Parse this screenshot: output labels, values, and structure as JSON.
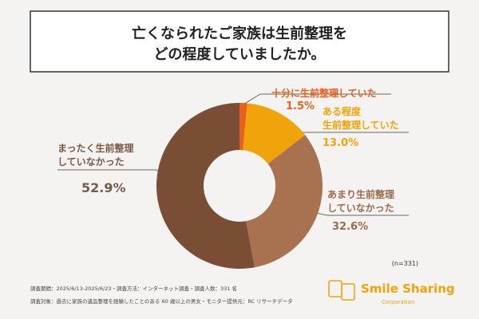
{
  "chart_data": {
    "type": "donut",
    "title": [
      "亡くなられたご家族は生前整理を",
      "どの程度していましたか。"
    ],
    "categories": [
      "十分に生前整理していた",
      "ある程度\n生前整理していた",
      "あまり生前整理\nしていなかった",
      "まったく生前整理\nしていなかった"
    ],
    "values": [
      1.5,
      13.0,
      32.6,
      52.9
    ],
    "value_labels": [
      "1.5%",
      "13.0%",
      "32.6%",
      "52.9%"
    ],
    "colors": [
      "#e8601c",
      "#f0a30a",
      "#a87150",
      "#7a4e35"
    ],
    "note": "(n=331)",
    "footnotes": [
      "調査期間：2025/6/13-2025/6/23・調査方法：インターネット調査・調査人数：331 名",
      "調査対象：過去に家族の遺品整理を経験したことのある 60 歳以上の男女・モニター提供元：RC リサーチデータ"
    ],
    "logo": {
      "name": "Smile Sharing",
      "tagline": "Corporation"
    }
  }
}
